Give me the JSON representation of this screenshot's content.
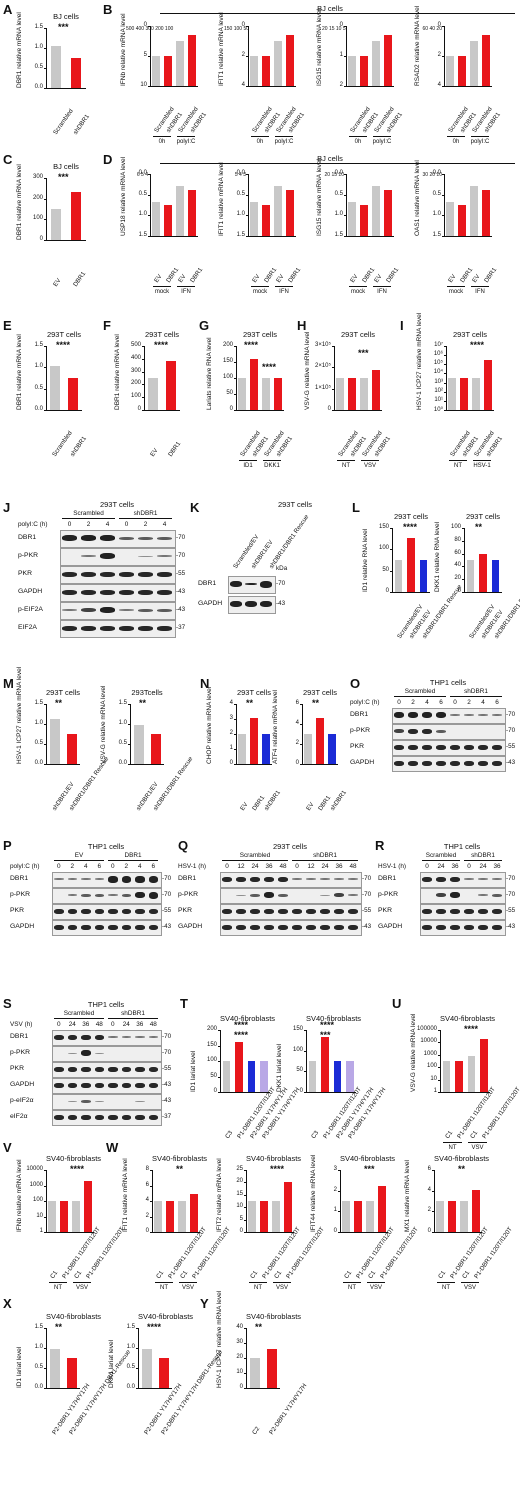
{
  "panels": {
    "A": {
      "letter": "A",
      "title": "BJ cells",
      "ylabel": "DBR1 relative mRNA level",
      "yticks": [
        "0.0",
        "0.5",
        "1.0",
        "1.5"
      ],
      "groups": [
        "Scrambled",
        "shDBR1"
      ],
      "sig": "***"
    },
    "B": {
      "letter": "B",
      "title": "BJ cells",
      "charts": [
        {
          "ylabel": "IFNb relative mRNA level",
          "ytop": [
            "500",
            "400",
            "300",
            "200",
            "100"
          ],
          "ybot": [
            "10",
            "5",
            "0"
          ]
        },
        {
          "ylabel": "IFIT1 relative mRNA level",
          "ytop": [
            "150",
            "100",
            "50"
          ],
          "ybot": [
            "4",
            "2",
            "0"
          ]
        },
        {
          "ylabel": "ISG15 relative mRNA level",
          "ytop": [
            "20",
            "15",
            "10",
            "5"
          ],
          "ybot": [
            "2",
            "1",
            "0"
          ]
        },
        {
          "ylabel": "RSAD2 relative mRNA level",
          "ytop": [
            "60",
            "40",
            "20"
          ],
          "ybot": [
            "4",
            "2",
            "0"
          ]
        }
      ],
      "groups": [
        "Scrambled",
        "shDBR1",
        "Scrambled",
        "shDBR1"
      ],
      "conds": [
        "0h",
        "polyI:C"
      ]
    },
    "C": {
      "letter": "C",
      "title": "BJ cells",
      "ylabel": "DBR1 relative mRNA level",
      "yticks": [
        "0",
        "100",
        "200",
        "300"
      ],
      "groups": [
        "EV",
        "DBR1"
      ],
      "sig": "***"
    },
    "D": {
      "letter": "D",
      "title": "BJ cells",
      "charts": [
        {
          "ylabel": "USP18 relative mRNA level",
          "ytop": [
            "6",
            "5",
            "4"
          ],
          "ybot": [
            "1.5",
            "1.0",
            "0.5",
            "0.0"
          ]
        },
        {
          "ylabel": "IFIT1 relative mRNA level",
          "ytop": [
            "5",
            "4",
            "3"
          ],
          "ybot": [
            "1.5",
            "1.0",
            "0.5",
            "0.0"
          ]
        },
        {
          "ylabel": "ISG15 relative mRNA level",
          "ytop": [
            "20",
            "15",
            "10"
          ],
          "ybot": [
            "1.5",
            "1.0",
            "0.5",
            "0.0"
          ]
        },
        {
          "ylabel": "OAS1 relative mRNA level",
          "ytop": [
            "30",
            "20",
            "10"
          ],
          "ybot": [
            "1.5",
            "1.0",
            "0.5",
            "0.0"
          ]
        }
      ],
      "groups": [
        "EV",
        "DBR1",
        "EV",
        "DBR1"
      ],
      "conds": [
        "mock",
        "IFN"
      ]
    },
    "E": {
      "letter": "E",
      "title": "293T cells",
      "ylabel": "DBR1 relative mRNA level",
      "yticks": [
        "0.0",
        "0.5",
        "1.0",
        "1.5"
      ],
      "groups": [
        "Scrambled",
        "shDBR1"
      ],
      "sig": "****"
    },
    "F": {
      "letter": "F",
      "title": "293T cells",
      "ylabel": "DBR1 relative mRNA level",
      "yticks": [
        "0",
        "100",
        "200",
        "300",
        "400",
        "500"
      ],
      "groups": [
        "EV",
        "DBR1"
      ],
      "sig": "****"
    },
    "G": {
      "letter": "G",
      "title": "293T cells",
      "ylabel": "Lariats relative RNA level",
      "yticks": [
        "0",
        "50",
        "100",
        "150",
        "200"
      ],
      "groups": [
        "Scrambled",
        "shDBR1",
        "Scrambled",
        "shDBR1"
      ],
      "conds": [
        "ID1",
        "DKK1"
      ],
      "sig1": "****",
      "sig2": "****"
    },
    "H": {
      "letter": "H",
      "title": "293T cells",
      "ylabel": "VSV-G relative mRNA level",
      "yticks": [
        "0",
        "1×10⁵",
        "2×10⁵",
        "3×10⁵"
      ],
      "groups": [
        "Scrambled",
        "shDBR1",
        "Scrambled",
        "shDBR1"
      ],
      "conds": [
        "NT",
        "VSV"
      ],
      "sig": "***"
    },
    "I": {
      "letter": "I",
      "title": "293T cells",
      "ylabel": "HSV-1 ICP27 relative mRNA level",
      "yticks": [
        "10⁰",
        "10¹",
        "10²",
        "10³",
        "10⁴",
        "10⁵",
        "10⁶",
        "10⁷"
      ],
      "groups": [
        "Scrambled",
        "shDBR1",
        "Scrambled",
        "shDBR1"
      ],
      "conds": [
        "NT",
        "HSV-1"
      ],
      "sig": "****"
    },
    "J": {
      "letter": "J",
      "title": "293T cells",
      "treat": "polyI:C (h)",
      "grp1": "Scrambled",
      "grp2": "shDBR1",
      "lanes": [
        "0",
        "2",
        "4",
        "0",
        "2",
        "4"
      ],
      "rows": [
        {
          "label": "DBR1",
          "kda": "70"
        },
        {
          "label": "p-PKR",
          "kda": "70"
        },
        {
          "label": "PKR",
          "kda": "55"
        },
        {
          "label": "GAPDH",
          "kda": "43"
        },
        {
          "label": "p-EIF2A",
          "kda": "43"
        },
        {
          "label": "EIF2A",
          "kda": "37"
        }
      ]
    },
    "K": {
      "letter": "K",
      "title": "293T cells",
      "lanes": [
        "Scrambled/EV",
        "shDBR1/EV",
        "shDBR1/DBR1 Rescue"
      ],
      "kda_head": "kDa",
      "rows": [
        {
          "label": "DBR1",
          "kda": "70"
        },
        {
          "label": "GAPDH",
          "kda": "43"
        }
      ]
    },
    "L": {
      "letter": "L",
      "charts": [
        {
          "title": "293T cells",
          "ylabel": "ID1 relative RNA level",
          "yticks": [
            "0",
            "50",
            "100",
            "150"
          ],
          "sig": "****"
        },
        {
          "title": "293T cells",
          "ylabel": "DKK1 relative RNA level",
          "yticks": [
            "0",
            "20",
            "40",
            "60",
            "80",
            "100"
          ],
          "sig": "**"
        }
      ],
      "groups": [
        "Scrambled/EV",
        "shDBR1/EV",
        "shDBR1/DBR1 Rescue"
      ]
    },
    "M": {
      "letter": "M",
      "charts": [
        {
          "title": "293T cells",
          "ylabel": "HSV-1 ICP27 relative mRNA level",
          "yticks": [
            "0.0",
            "0.5",
            "1.0",
            "1.5"
          ],
          "sig": "**"
        },
        {
          "title": "293Tcells",
          "ylabel": "VSV-G relative mRNA level",
          "yticks": [
            "0.0",
            "0.5",
            "1.0",
            "1.5"
          ],
          "sig": "**"
        }
      ],
      "groups": [
        "shDBR1/EV",
        "shDBR1/DBR1 Rescue"
      ]
    },
    "N": {
      "letter": "N",
      "charts": [
        {
          "title": "293T cells",
          "ylabel": "CHOP relative mRNA level",
          "yticks": [
            "0",
            "1",
            "2",
            "3",
            "4"
          ],
          "sig": "**"
        },
        {
          "title": "293T cells",
          "ylabel": "ATF4 relative mRNA level",
          "yticks": [
            "0",
            "2",
            "4",
            "6"
          ],
          "sig": "**"
        }
      ],
      "groups": [
        "EV",
        "DBR1",
        "shDBR1"
      ]
    },
    "O": {
      "letter": "O",
      "title": "THP1 cells",
      "treat": "polyI:C (h)",
      "grp1": "Scrambled",
      "grp2": "shDBR1",
      "lanes": [
        "0",
        "2",
        "4",
        "6",
        "0",
        "2",
        "4",
        "6"
      ],
      "rows": [
        {
          "label": "DBR1",
          "kda": "70"
        },
        {
          "label": "p-PKR",
          "kda": "70"
        },
        {
          "label": "PKR",
          "kda": "55"
        },
        {
          "label": "GAPDH",
          "kda": "43"
        }
      ]
    },
    "P": {
      "letter": "P",
      "title": "THP1 cells",
      "treat": "polyI:C (h)",
      "grp1": "EV",
      "grp2": "DBR1",
      "lanes": [
        "0",
        "2",
        "4",
        "6",
        "0",
        "2",
        "4",
        "6"
      ],
      "rows": [
        {
          "label": "DBR1",
          "kda": "70"
        },
        {
          "label": "p-PKR",
          "kda": "70"
        },
        {
          "label": "PKR",
          "kda": "55"
        },
        {
          "label": "GAPDH",
          "kda": "43"
        }
      ]
    },
    "Q": {
      "letter": "Q",
      "title": "293T cells",
      "treat": "HSV-1 (h)",
      "grp1": "Scrambled",
      "grp2": "shDBR1",
      "lanes": [
        "0",
        "12",
        "24",
        "36",
        "48",
        "0",
        "12",
        "24",
        "36",
        "48"
      ],
      "rows": [
        {
          "label": "DBR1",
          "kda": "70"
        },
        {
          "label": "p-PKR",
          "kda": "70"
        },
        {
          "label": "PKR",
          "kda": "55"
        },
        {
          "label": "GAPDH",
          "kda": "43"
        }
      ]
    },
    "R": {
      "letter": "R",
      "title": "THP1 cells",
      "treat": "HSV-1 (h)",
      "grp1": "Scrambled",
      "grp2": "shDBR1",
      "lanes": [
        "0",
        "24",
        "36",
        "0",
        "24",
        "36"
      ],
      "rows": [
        {
          "label": "DBR1",
          "kda": "70"
        },
        {
          "label": "p-PKR",
          "kda": "70"
        },
        {
          "label": "PKR",
          "kda": "55"
        },
        {
          "label": "GAPDH",
          "kda": "43"
        }
      ]
    },
    "S": {
      "letter": "S",
      "title": "THP1 cells",
      "treat": "VSV (h)",
      "grp1": "Scrambled",
      "grp2": "shDBR1",
      "lanes": [
        "0",
        "24",
        "36",
        "48",
        "0",
        "24",
        "36",
        "48"
      ],
      "rows": [
        {
          "label": "DBR1",
          "kda": "70"
        },
        {
          "label": "p-PKR",
          "kda": "70"
        },
        {
          "label": "PKR",
          "kda": "55"
        },
        {
          "label": "GAPDH",
          "kda": "43"
        },
        {
          "label": "p-eIF2α",
          "kda": "43"
        },
        {
          "label": "eIF2α",
          "kda": "37"
        }
      ]
    },
    "T": {
      "letter": "T",
      "charts": [
        {
          "title": "SV40-fibroblasts",
          "ylabel": "ID1 lariat level",
          "yticks": [
            "0",
            "50",
            "100",
            "150",
            "200"
          ]
        },
        {
          "title": "SV40-fibroblasts",
          "ylabel": "DKK1 lariat level",
          "yticks": [
            "0",
            "50",
            "100",
            "150"
          ]
        }
      ],
      "groups": [
        "C3",
        "P1-DBR1 I120T/I120T",
        "P2-DBR1 Y17H/Y17H",
        "P3-DBR1 Y17H/Y17H"
      ],
      "sig": "****",
      "sig_b": "***"
    },
    "U": {
      "letter": "U",
      "title": "SV40-fibroblasts",
      "ylabel": "VSV-G relative mRNA level",
      "yticks": [
        "1",
        "10",
        "100",
        "1000",
        "10000",
        "100000"
      ],
      "groups": [
        "C1",
        "P1-DBR1 I120T/I120T",
        "C1",
        "P1-DBR1 I120T/I120T"
      ],
      "conds": [
        "NT",
        "VSV"
      ],
      "sig": "****"
    },
    "V": {
      "letter": "V",
      "title": "SV40-fibroblasts",
      "ylabel": "IFNb relative mRNA level",
      "yticks": [
        "1",
        "10",
        "100",
        "1000",
        "10000"
      ],
      "groups": [
        "C1",
        "P1-DBR1 I120T/I120T",
        "C1",
        "P1-DBR1 I120T/I120T"
      ],
      "conds": [
        "NT",
        "VSV"
      ],
      "sig": "****"
    },
    "W": {
      "letter": "W",
      "charts": [
        {
          "title": "SV40-fibroblasts",
          "ylabel": "IFIT1 relative mRNA level",
          "yticks": [
            "0",
            "2",
            "4",
            "6",
            "8"
          ],
          "sig": "**"
        },
        {
          "title": "SV40-fibroblasts",
          "ylabel": "IFIT2 relative mRNA level",
          "yticks": [
            "0",
            "5",
            "10",
            "15",
            "20",
            "25"
          ],
          "sig": "****"
        },
        {
          "title": "SV40-fibroblasts",
          "ylabel": "IFIT44 relative mRNA level",
          "yticks": [
            "0",
            "1",
            "2",
            "3"
          ],
          "sig": "***"
        },
        {
          "title": "SV40-fibroblasts",
          "ylabel": "MX1 relative mRNA level",
          "yticks": [
            "0",
            "2",
            "4",
            "6"
          ],
          "sig": "**"
        }
      ],
      "groups": [
        "C1",
        "P1-DBR1 I120T/I120T",
        "C1",
        "P1-DBR1 I120T/I120T"
      ],
      "conds": [
        "NT",
        "VSV"
      ]
    },
    "X": {
      "letter": "X",
      "charts": [
        {
          "title": "SV40-fibroblasts",
          "ylabel": "ID1 lariat level",
          "yticks": [
            "0.0",
            "0.5",
            "1.0",
            "1.5"
          ],
          "sig": "**"
        },
        {
          "title": "SV40-fibroblasts",
          "ylabel": "DKK1 lariat level",
          "yticks": [
            "0.0",
            "0.5",
            "1.0",
            "1.5"
          ],
          "sig": "****"
        }
      ],
      "groups": [
        "P2-DBR1 Y17H/Y17H",
        "P2-DBR1 Y17H/Y17H DBR1-Rescue"
      ]
    },
    "Y": {
      "letter": "Y",
      "title": "SV40-fibroblasts",
      "ylabel": "HSV-1 ICP27 relative mRNA level",
      "yticks": [
        "0",
        "10",
        "20",
        "30",
        "40"
      ],
      "groups": [
        "C2",
        "P2-DBR1 Y17H/Y17H"
      ],
      "sig": "**"
    }
  },
  "colors": {
    "gray": "#c8c8c8",
    "red": "#e8161b",
    "blue": "#1b2bd6",
    "purple": "#b9a8e6"
  }
}
